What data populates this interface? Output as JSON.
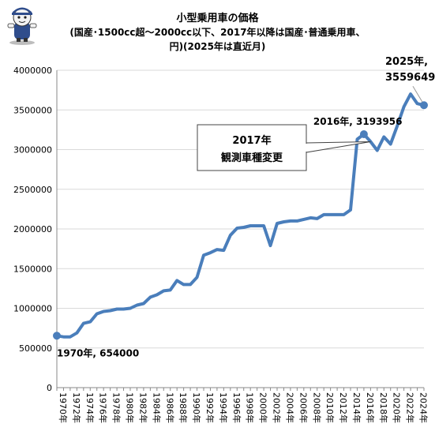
{
  "title": {
    "line1": "小型乗用車の価格",
    "line2": "(国産･1500cc超～2000cc以下、2017年以降は国産･普通乗用車、",
    "line3": "円)(2025年は直近月)"
  },
  "colors": {
    "line": "#4a7ebb",
    "grid": "#d9d9d9",
    "axis": "#888888",
    "text": "#000000"
  },
  "mascot_icon": "cartoon-character-logo",
  "chart_data": {
    "type": "line",
    "title": "小型乗用車の価格",
    "xlabel": "",
    "ylabel": "",
    "ylim": [
      0,
      4000000
    ],
    "yticks": [
      0,
      500000,
      1000000,
      1500000,
      2000000,
      2500000,
      3000000,
      3500000,
      4000000
    ],
    "xlim": [
      1970,
      2025
    ],
    "xtick_labels": [
      "1970年",
      "1972年",
      "1974年",
      "1976年",
      "1978年",
      "1980年",
      "1982年",
      "1984年",
      "1986年",
      "1988年",
      "1990年",
      "1992年",
      "1994年",
      "1996年",
      "1998年",
      "2000年",
      "2002年",
      "2004年",
      "2006年",
      "2008年",
      "2010年",
      "2012年",
      "2014年",
      "2016年",
      "2018年",
      "2020年",
      "2022年",
      "2024年"
    ],
    "grid": true,
    "legend": "none",
    "series": [
      {
        "x": [
          1970,
          1971,
          1972,
          1973,
          1974,
          1975,
          1976,
          1977,
          1978,
          1979,
          1980,
          1981,
          1982,
          1983,
          1984,
          1985,
          1986,
          1987,
          1988,
          1989,
          1990,
          1991,
          1992,
          1993,
          1994,
          1995,
          1996,
          1997,
          1998,
          1999,
          2000,
          2001,
          2002,
          2003,
          2004,
          2005,
          2006,
          2007,
          2008,
          2009,
          2010,
          2011,
          2012,
          2013,
          2014,
          2015,
          2016,
          2017,
          2018,
          2019,
          2020,
          2021,
          2022,
          2023,
          2024,
          2025
        ],
        "values": [
          654000,
          640000,
          640000,
          690000,
          810000,
          830000,
          930000,
          960000,
          970000,
          990000,
          990000,
          1000000,
          1040000,
          1060000,
          1140000,
          1170000,
          1220000,
          1230000,
          1350000,
          1300000,
          1300000,
          1390000,
          1670000,
          1700000,
          1740000,
          1730000,
          1920000,
          2010000,
          2020000,
          2040000,
          2040000,
          2040000,
          1790000,
          2070000,
          2090000,
          2100000,
          2100000,
          2120000,
          2140000,
          2130000,
          2180000,
          2180000,
          2180000,
          2180000,
          2240000,
          3130000,
          3193956,
          3100000,
          2990000,
          3160000,
          3070000,
          3300000,
          3540000,
          3700000,
          3580000,
          3559649
        ]
      }
    ],
    "annotations": [
      {
        "id": "start",
        "text": "1970年, 654000",
        "x": 1970,
        "y": 654000
      },
      {
        "id": "peak2016",
        "text": "2016年, 3193956",
        "x": 2016,
        "y": 3193956
      },
      {
        "id": "last",
        "line1": "2025年,",
        "line2": "3559649",
        "x": 2025,
        "y": 3559649
      },
      {
        "id": "note",
        "line1": "2017年",
        "line2": "観測車種変更",
        "x": 2017,
        "y": 3100000
      }
    ]
  }
}
